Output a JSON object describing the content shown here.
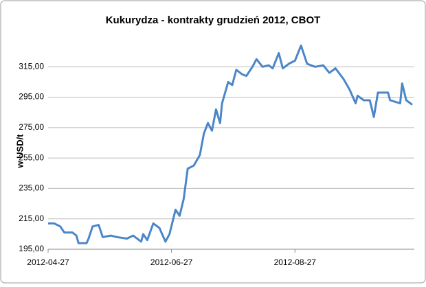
{
  "chart_data": {
    "type": "line",
    "title": "Kukurydza - kontrakty grudzień 2012, CBOT",
    "y_label": "w USD/t",
    "x": [
      "2012-04-27",
      "2012-04-30",
      "2012-05-03",
      "2012-05-05",
      "2012-05-09",
      "2012-05-11",
      "2012-05-12",
      "2012-05-16",
      "2012-05-17",
      "2012-05-19",
      "2012-05-22",
      "2012-05-24",
      "2012-05-28",
      "2012-05-31",
      "2012-06-05",
      "2012-06-08",
      "2012-06-12",
      "2012-06-13",
      "2012-06-15",
      "2012-06-18",
      "2012-06-21",
      "2012-06-23",
      "2012-06-24",
      "2012-06-26",
      "2012-06-29",
      "2012-07-01",
      "2012-07-03",
      "2012-07-05",
      "2012-07-08",
      "2012-07-11",
      "2012-07-13",
      "2012-07-15",
      "2012-07-17",
      "2012-07-19",
      "2012-07-21",
      "2012-07-22",
      "2012-07-25",
      "2012-07-27",
      "2012-07-29",
      "2012-08-01",
      "2012-08-03",
      "2012-08-06",
      "2012-08-08",
      "2012-08-11",
      "2012-08-14",
      "2012-08-16",
      "2012-08-19",
      "2012-08-21",
      "2012-08-24",
      "2012-08-27",
      "2012-08-30",
      "2012-09-02",
      "2012-09-06",
      "2012-09-10",
      "2012-09-13",
      "2012-09-16",
      "2012-09-20",
      "2012-09-23",
      "2012-09-26",
      "2012-09-27",
      "2012-09-30",
      "2012-10-03",
      "2012-10-05",
      "2012-10-07",
      "2012-10-12",
      "2012-10-13",
      "2012-10-18",
      "2012-10-19",
      "2012-10-21",
      "2012-10-24"
    ],
    "series": [
      {
        "color": "#4a86c8",
        "values": [
          212,
          212,
          210,
          206,
          206,
          204,
          199,
          199,
          202,
          210,
          211,
          203,
          204,
          203,
          202,
          204,
          200,
          205,
          201,
          212,
          209,
          203,
          200,
          205,
          221,
          217,
          228,
          248,
          250,
          257,
          271,
          278,
          273,
          287,
          278,
          291,
          305,
          303,
          313,
          310,
          309,
          315,
          320,
          315,
          316,
          314,
          324,
          314,
          317,
          319,
          329,
          317,
          315,
          316,
          311,
          314,
          307,
          300,
          291,
          296,
          293,
          293,
          282,
          298,
          298,
          293,
          291,
          304,
          293,
          290
        ]
      }
    ],
    "xlim": [
      "2012-04-27",
      "2012-10-25"
    ],
    "xticks": [
      "2012-04-27",
      "2012-06-27",
      "2012-08-27"
    ],
    "ylim": [
      195,
      335
    ],
    "yticks": [
      {
        "value": 195,
        "label": "195,00"
      },
      {
        "value": 215,
        "label": "215,00"
      },
      {
        "value": 235,
        "label": "235,00"
      },
      {
        "value": 255,
        "label": "255,00"
      },
      {
        "value": 275,
        "label": "275,00"
      },
      {
        "value": 295,
        "label": "295,00"
      },
      {
        "value": 315,
        "label": "315,00"
      }
    ],
    "grid": true
  }
}
